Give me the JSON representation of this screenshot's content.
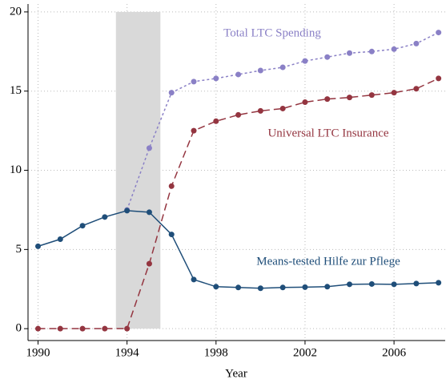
{
  "chart_data": {
    "type": "line",
    "x_label": "Year",
    "x": [
      1990,
      1991,
      1992,
      1993,
      1994,
      1995,
      1996,
      1997,
      1998,
      1999,
      2000,
      2001,
      2002,
      2003,
      2004,
      2005,
      2006,
      2007,
      2008
    ],
    "series": [
      {
        "name": "Total LTC Spending",
        "color": "#8a80c6",
        "line_style": "dotted",
        "values": [
          null,
          null,
          null,
          null,
          7.5,
          11.4,
          14.9,
          15.6,
          15.8,
          16.05,
          16.3,
          16.5,
          16.9,
          17.15,
          17.4,
          17.5,
          17.65,
          18.0,
          18.7
        ]
      },
      {
        "name": "Universal LTC Insurance",
        "color": "#943540",
        "line_style": "dashed",
        "values": [
          0,
          0,
          0,
          0,
          0,
          4.1,
          9.0,
          12.5,
          13.1,
          13.5,
          13.75,
          13.9,
          14.3,
          14.5,
          14.6,
          14.75,
          14.9,
          15.15,
          15.8
        ]
      },
      {
        "name": "Means-tested Hilfe zur Pflege",
        "color": "#1f4e79",
        "line_style": "solid",
        "values": [
          5.2,
          5.65,
          6.5,
          7.05,
          7.45,
          7.35,
          5.95,
          3.1,
          2.65,
          2.6,
          2.55,
          2.6,
          2.62,
          2.65,
          2.8,
          2.82,
          2.8,
          2.85,
          2.9
        ]
      }
    ],
    "shaded_region": {
      "x": [
        1993.5,
        1995.5
      ],
      "y": [
        0,
        20
      ],
      "color": "#d9d9d9"
    },
    "xlim": [
      1989.55,
      2008.3
    ],
    "xticks": [
      1990,
      1994,
      1998,
      2002,
      2006
    ],
    "ylim": [
      -0.75,
      20.5
    ],
    "yticks": [
      0,
      5,
      10,
      15,
      20
    ],
    "grid": true
  }
}
